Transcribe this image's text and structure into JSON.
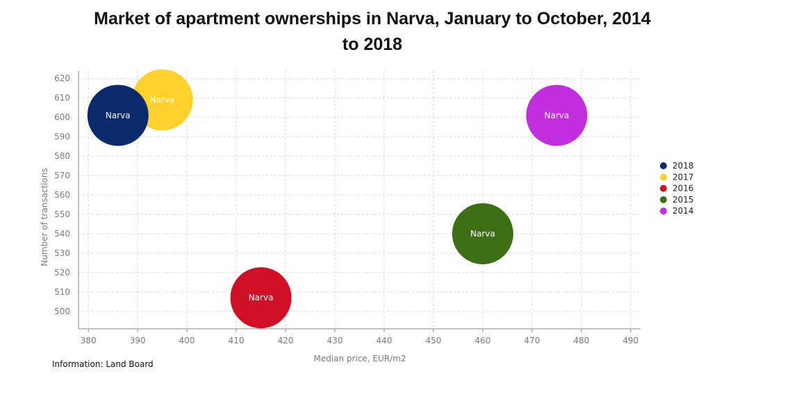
{
  "chart_data": {
    "type": "scatter",
    "title_lines": [
      "Market of apartment ownerships in Narva, January to October, 2014",
      "to 2018"
    ],
    "xlabel": "Median price, EUR/m2",
    "ylabel": "Number of transactions",
    "xlim": [
      378,
      492
    ],
    "ylim": [
      491,
      624
    ],
    "x_ticks": [
      380,
      390,
      400,
      410,
      420,
      430,
      440,
      450,
      460,
      470,
      480,
      490
    ],
    "y_ticks": [
      500,
      510,
      520,
      530,
      540,
      550,
      560,
      570,
      580,
      590,
      600,
      610,
      620
    ],
    "grid": true,
    "legend_position": "right",
    "series": [
      {
        "name": "2018",
        "color": "#0b2a6e",
        "label": "Narva",
        "x": 386,
        "y": 601
      },
      {
        "name": "2017",
        "color": "#fed12c",
        "label": "Narva",
        "x": 395,
        "y": 609
      },
      {
        "name": "2016",
        "color": "#cf1026",
        "label": "Narva",
        "x": 415,
        "y": 507
      },
      {
        "name": "2015",
        "color": "#3d7014",
        "label": "Narva",
        "x": 460,
        "y": 540
      },
      {
        "name": "2014",
        "color": "#c12ede",
        "label": "Narva",
        "x": 475,
        "y": 601
      }
    ],
    "source": "Information: Land Board"
  }
}
